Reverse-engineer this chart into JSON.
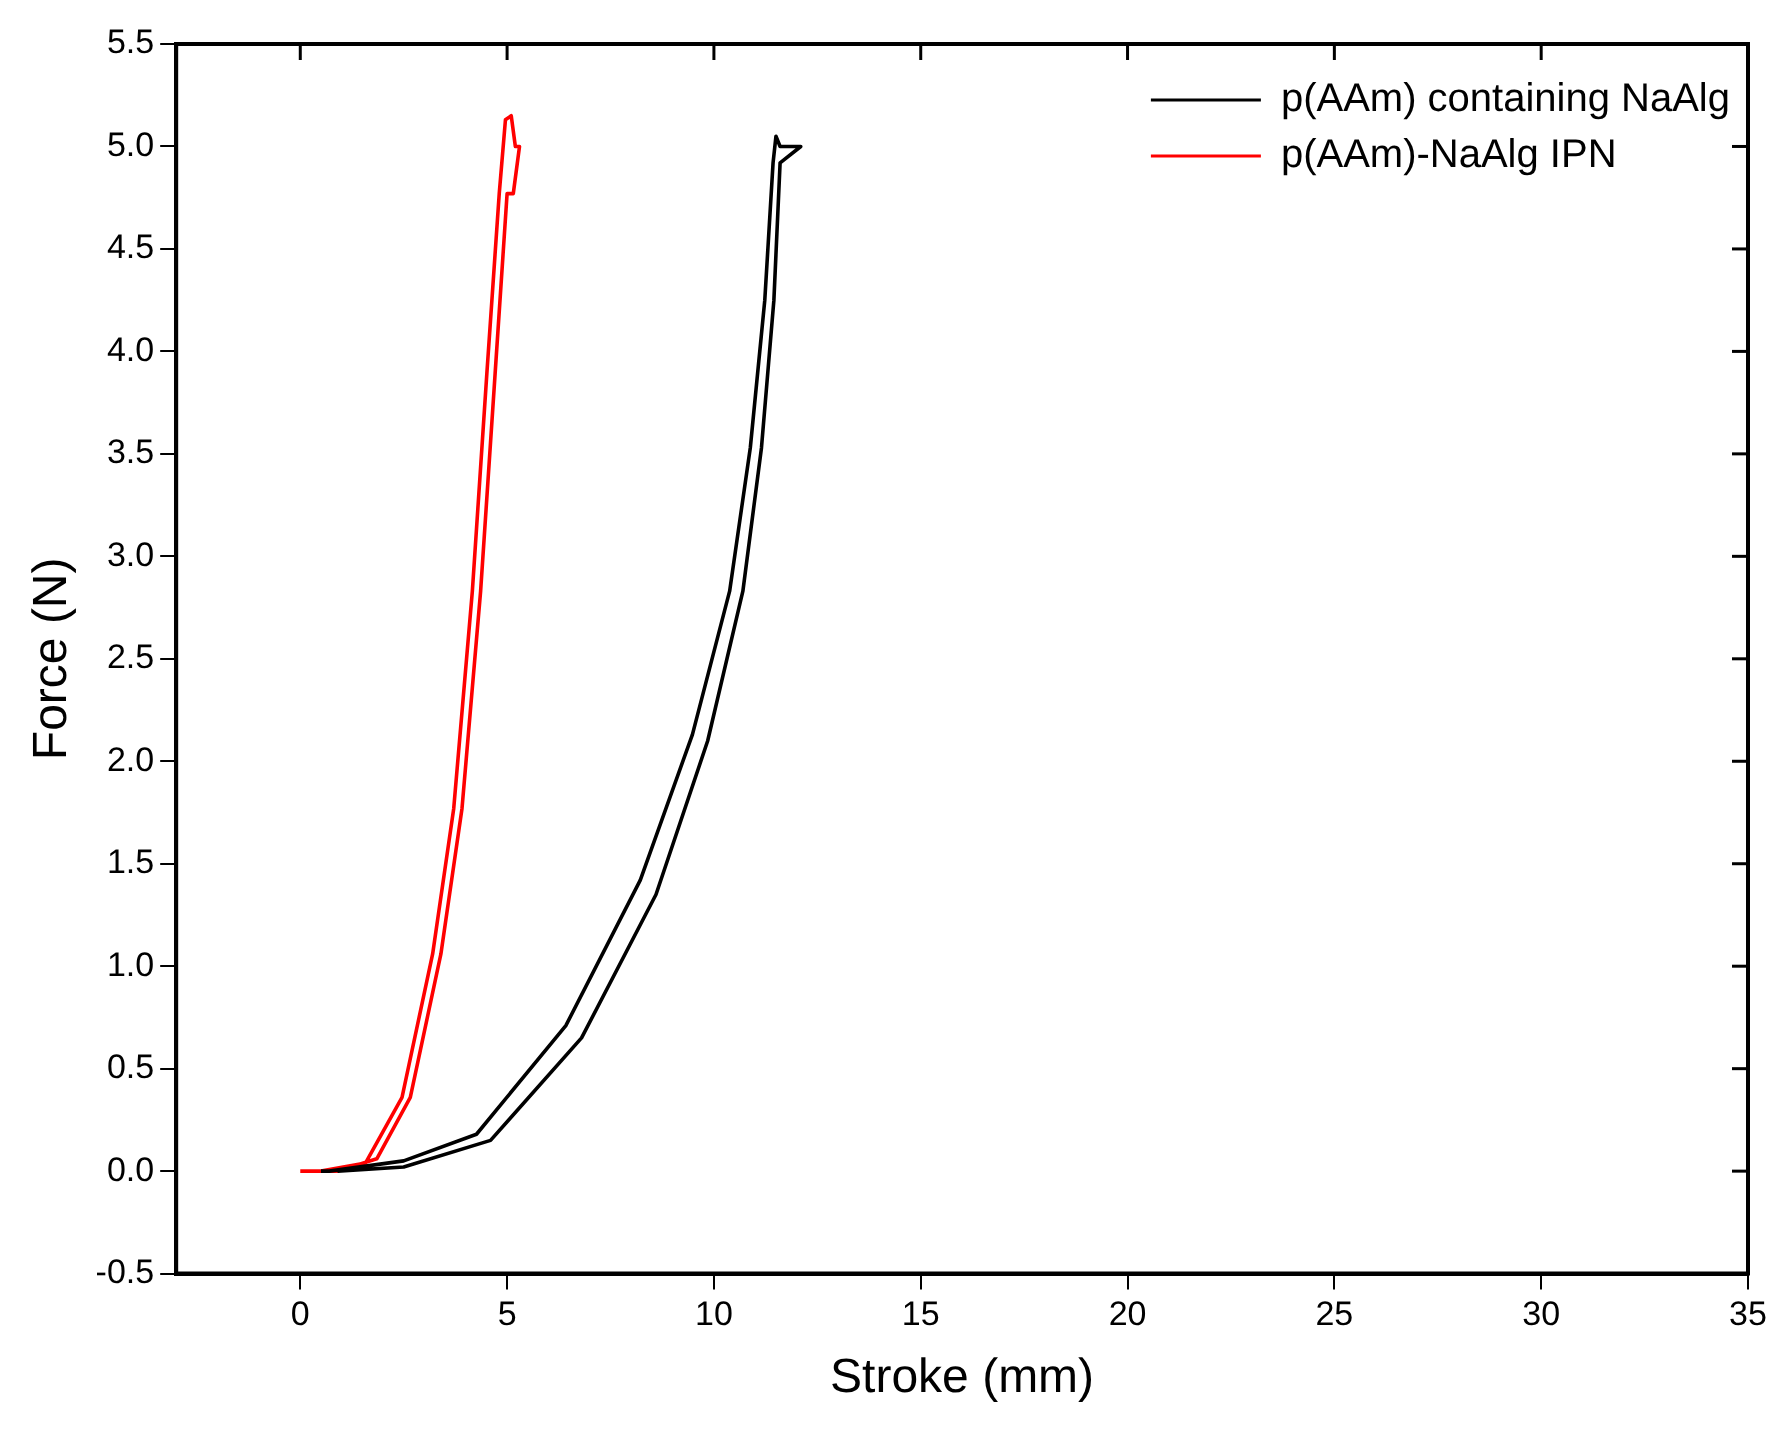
{
  "chart_data": {
    "type": "line",
    "xlabel": "Stroke (mm)",
    "ylabel": "Force (N)",
    "xlim": [
      -3,
      35
    ],
    "ylim": [
      -0.5,
      5.5
    ],
    "xticks": [
      0,
      5,
      10,
      15,
      20,
      25,
      30,
      35
    ],
    "yticks": [
      -0.5,
      {
        "value": 0,
        "label": "0.0"
      },
      0.5,
      {
        "value": 1,
        "label": "1.0"
      },
      1.5,
      {
        "value": 2,
        "label": "2.0"
      },
      2.5,
      {
        "value": 3,
        "label": "3.0"
      },
      3.5,
      {
        "value": 4,
        "label": "4.0"
      },
      4.5,
      {
        "value": 5,
        "label": "5.0"
      },
      5.5
    ],
    "grid": false,
    "legend": "top right",
    "marker": "none",
    "line_style": "solid",
    "series": [
      {
        "name": "p(AAm) containing NaAlg",
        "color": "#000000",
        "x": [
          0.5,
          0.7,
          2.5,
          4.26,
          6.42,
          8.22,
          9.48,
          10.38,
          10.88,
          11.23,
          11.43,
          11.5,
          11.6,
          12.1,
          11.6,
          11.45,
          11.15,
          10.7,
          9.85,
          8.6,
          6.8,
          4.6,
          2.5,
          0.9
        ],
        "values": [
          0,
          0,
          0.05,
          0.18,
          0.71,
          1.42,
          2.13,
          2.83,
          3.53,
          4.25,
          4.92,
          5.05,
          5.0,
          5.0,
          4.92,
          4.25,
          3.53,
          2.83,
          2.1,
          1.35,
          0.65,
          0.15,
          0.02,
          0
        ]
      },
      {
        "name": "p(AAm)-NaAlg IPN",
        "color": "#ff0000",
        "x": [
          0,
          0.5,
          1.58,
          2.46,
          3.2,
          3.71,
          4.16,
          4.51,
          4.81,
          4.96,
          5.1,
          5.2,
          5.3,
          5.15,
          5.0,
          4.71,
          4.36,
          3.91,
          3.4,
          2.66,
          1.85,
          0.9,
          0.2
        ],
        "values": [
          0,
          0,
          0.04,
          0.36,
          1.06,
          1.77,
          2.83,
          3.89,
          4.77,
          5.13,
          5.15,
          5.0,
          5.0,
          4.77,
          4.77,
          3.89,
          2.83,
          1.77,
          1.06,
          0.36,
          0.06,
          0,
          0
        ]
      }
    ]
  }
}
